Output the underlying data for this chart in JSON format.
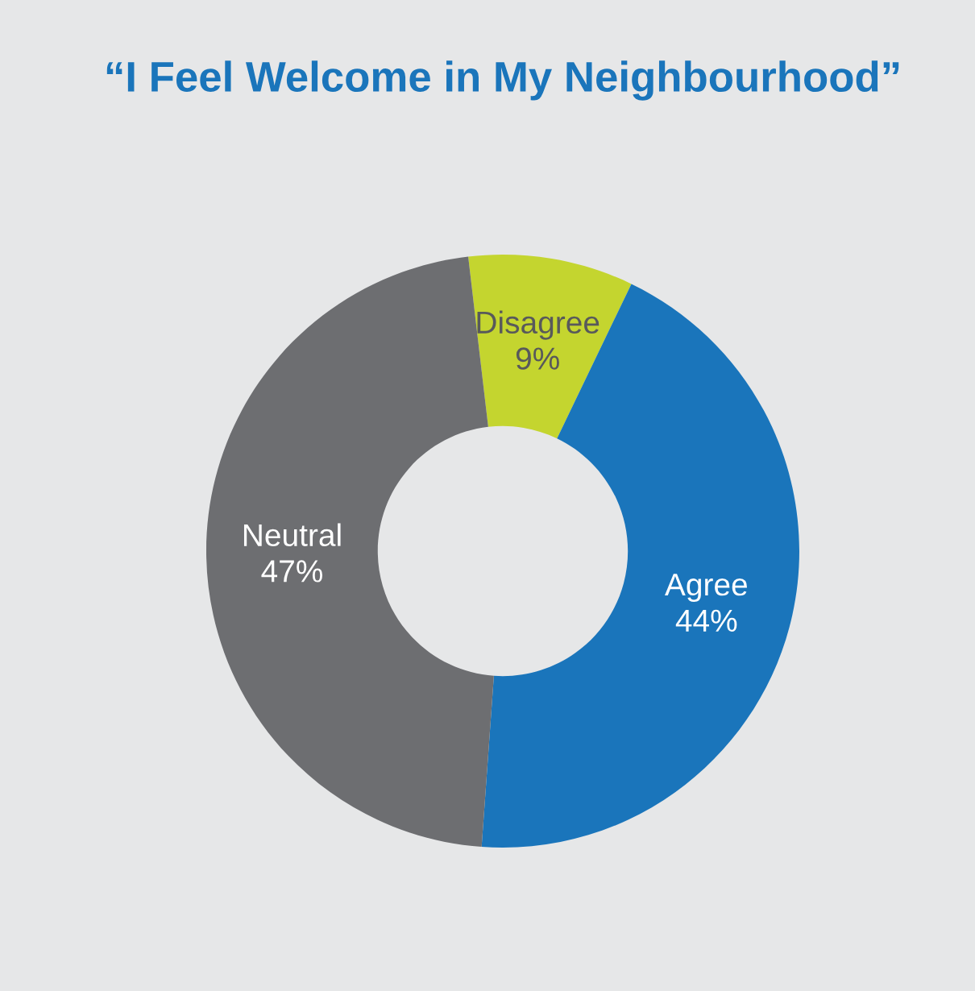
{
  "chart_data": {
    "type": "donut",
    "title": "“I Feel Welcome in My Neighbourhood”",
    "categories": [
      "Disagree",
      "Agree",
      "Neutral"
    ],
    "values": [
      9,
      44,
      47
    ],
    "value_labels": [
      "9%",
      "44%",
      "47%"
    ],
    "colors": [
      "#c4d52f",
      "#1a75bb",
      "#6d6e71"
    ],
    "legend": false
  }
}
